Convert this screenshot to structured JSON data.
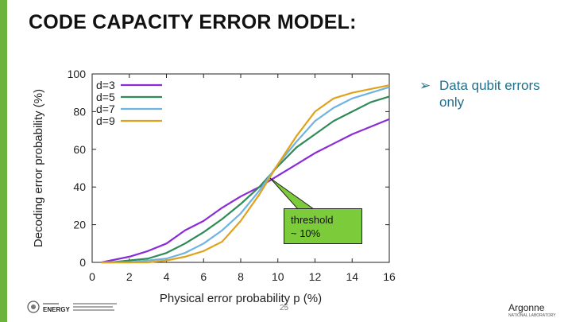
{
  "slide": {
    "title": "CODE CAPACITY ERROR MODEL:",
    "bullet": {
      "arrow": "➢",
      "text": "Data qubit errors only"
    },
    "callout": {
      "line1": "threshold",
      "line2": "~ 10%"
    },
    "page_number": "25",
    "footer_left": "ENERGY",
    "footer_right": "Argonne",
    "footer_right_sub": "NATIONAL LABORATORY"
  },
  "colors": {
    "accent_bar": "#6cb33e",
    "callout_fill": "#7ccb3a",
    "bullet_text": "#1f6f8b"
  },
  "chart_data": {
    "type": "line",
    "xlabel": "Physical error probability p (%)",
    "ylabel": "Decoding error probability (%)",
    "xlim": [
      0,
      16
    ],
    "ylim": [
      0,
      100
    ],
    "xticks": [
      0,
      2,
      4,
      6,
      8,
      10,
      12,
      14,
      16
    ],
    "yticks": [
      0,
      20,
      40,
      60,
      80,
      100
    ],
    "legend_position": "top-left",
    "series": [
      {
        "name": "d=3",
        "color": "#8a2bd6",
        "x": [
          0.5,
          1,
          2,
          3,
          4,
          5,
          6,
          7,
          8,
          9,
          10,
          11,
          12,
          13,
          14,
          15,
          16
        ],
        "y": [
          0,
          1,
          3,
          6,
          10,
          17,
          22,
          29,
          35,
          40,
          46,
          52,
          58,
          63,
          68,
          72,
          76
        ]
      },
      {
        "name": "d=5",
        "color": "#2e8b57",
        "x": [
          0.5,
          1,
          2,
          3,
          4,
          5,
          6,
          7,
          8,
          9,
          10,
          11,
          12,
          13,
          14,
          15,
          16
        ],
        "y": [
          0,
          0,
          1,
          2,
          5,
          10,
          16,
          23,
          31,
          40,
          51,
          61,
          68,
          75,
          80,
          85,
          88
        ]
      },
      {
        "name": "d=7",
        "color": "#6fb3e0",
        "x": [
          0.5,
          1,
          2,
          3,
          4,
          5,
          6,
          7,
          8,
          9,
          10,
          11,
          12,
          13,
          14,
          15,
          16
        ],
        "y": [
          0,
          0,
          0,
          1,
          2,
          5,
          10,
          17,
          26,
          38,
          52,
          64,
          75,
          82,
          87,
          90,
          93
        ]
      },
      {
        "name": "d=9",
        "color": "#e0a21b",
        "x": [
          0.5,
          1,
          2,
          3,
          4,
          5,
          6,
          7,
          8,
          9,
          10,
          11,
          12,
          13,
          14,
          15,
          16
        ],
        "y": [
          0,
          0,
          0,
          0,
          1,
          3,
          6,
          11,
          22,
          36,
          52,
          67,
          80,
          87,
          90,
          92,
          94
        ]
      }
    ]
  }
}
